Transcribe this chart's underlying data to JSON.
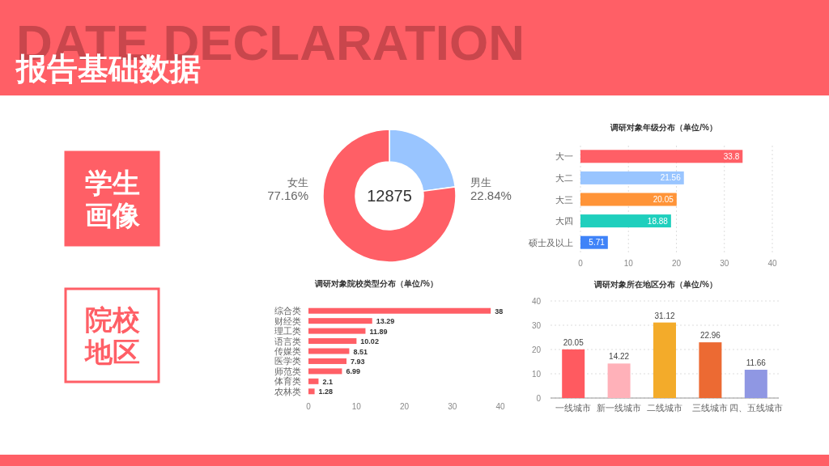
{
  "chart_data": [
    {
      "type": "other",
      "title": "报告基础数据",
      "subtitle": "DATE DECLARATION",
      "annotations": [
        "学生画像",
        "院校地区"
      ]
    },
    {
      "type": "donut",
      "categories": [
        "男生",
        "女生"
      ],
      "values": [
        22.84,
        77.16
      ],
      "colors": [
        "#99c5ff",
        "#ff5f66"
      ],
      "value_labels": [
        "22.84%",
        "77.16%"
      ],
      "annotations": [
        "12875"
      ]
    },
    {
      "type": "bar",
      "orientation": "horizontal",
      "title": "调研对象年级分布（单位/%）",
      "categories": [
        "大一",
        "大二",
        "大三",
        "大四",
        "硕士及以上"
      ],
      "values": [
        33.8,
        21.56,
        20.05,
        18.88,
        5.71
      ],
      "colors": [
        "#ff5f66",
        "#99c5ff",
        "#ff9438",
        "#1fcfbd",
        "#3f83f8"
      ],
      "xlim": [
        0,
        40
      ],
      "xticks": [
        0,
        10,
        20,
        30,
        40
      ],
      "grid": "x",
      "data_labels": true
    },
    {
      "type": "bar",
      "orientation": "horizontal",
      "title": "调研对象院校类型分布（单位/%）",
      "categories": [
        "综合类",
        "财经类",
        "理工类",
        "语言类",
        "传媒类",
        "医学类",
        "师范类",
        "体育类",
        "农林类"
      ],
      "values": [
        38,
        13.29,
        11.89,
        10.02,
        8.51,
        7.93,
        6.99,
        2.1,
        1.28
      ],
      "color": "#ff5f66",
      "xlim": [
        0,
        40
      ],
      "xticks": [
        0,
        10,
        20,
        30,
        40
      ],
      "data_labels": true
    },
    {
      "type": "bar",
      "title": "调研对象所在地区分布（单位/%）",
      "categories": [
        "一线城市",
        "新一线城市",
        "二线城市",
        "三线城市",
        "四、五线城市"
      ],
      "values": [
        20.05,
        14.22,
        31.12,
        22.96,
        11.66
      ],
      "colors": [
        "#ff5a60",
        "#ffb1b9",
        "#f3ab2a",
        "#ec6a33",
        "#8f97e3"
      ],
      "ylim": [
        0,
        40
      ],
      "yticks": [
        0,
        10,
        20,
        30,
        40
      ],
      "grid": "y",
      "data_labels": true
    }
  ]
}
